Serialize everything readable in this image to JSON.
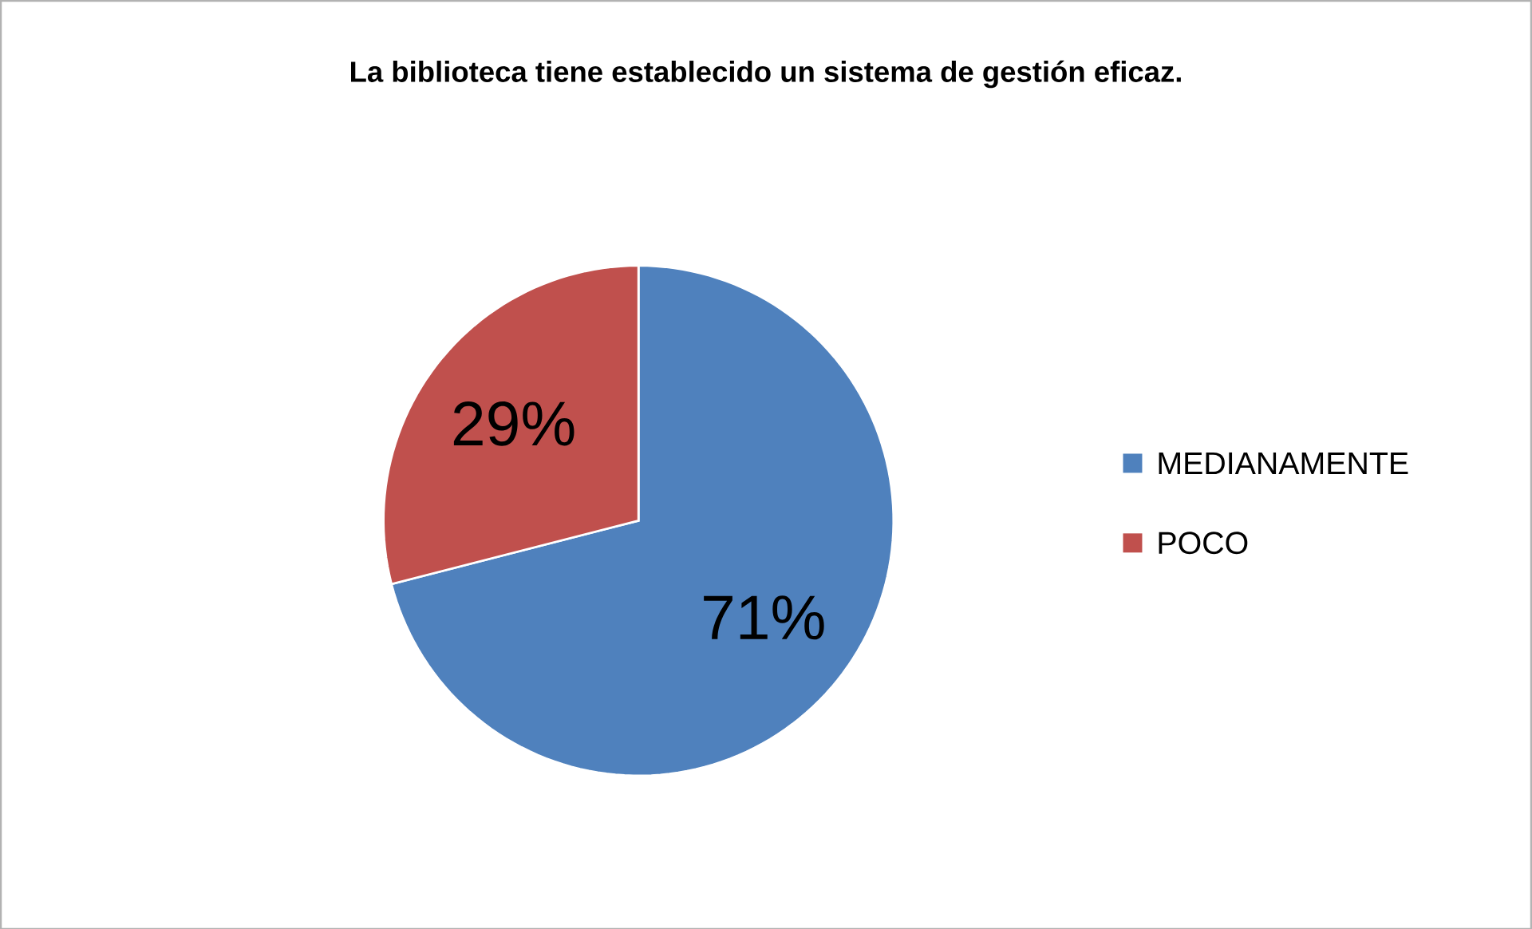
{
  "chart_data": {
    "type": "pie",
    "title": "La biblioteca tiene establecido un sistema de gestión eficaz.",
    "categories": [
      "MEDIANAMENTE",
      "POCO"
    ],
    "values": [
      71,
      29
    ],
    "colors": [
      "#4f81bd",
      "#c0504d"
    ],
    "value_labels": [
      "71%",
      "29%"
    ],
    "legend": "right"
  }
}
